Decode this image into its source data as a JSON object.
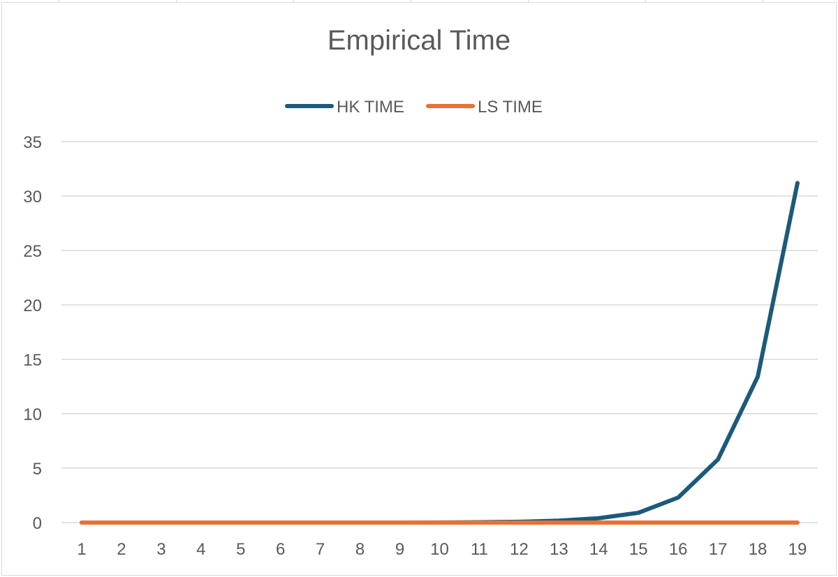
{
  "chart_data": {
    "type": "line",
    "title": "Empirical Time",
    "xlabel": "",
    "ylabel": "",
    "categories": [
      "1",
      "2",
      "3",
      "4",
      "5",
      "6",
      "7",
      "8",
      "9",
      "10",
      "11",
      "12",
      "13",
      "14",
      "15",
      "16",
      "17",
      "18",
      "19"
    ],
    "ylim": [
      0,
      35
    ],
    "yticks": [
      0,
      5,
      10,
      15,
      20,
      25,
      30,
      35
    ],
    "grid": "horizontal",
    "legend_position": "top",
    "series": [
      {
        "name": "HK TIME",
        "color": "#1b5a7a",
        "values": [
          0,
          0,
          0,
          0,
          0,
          0,
          0,
          0,
          0,
          0.01,
          0.03,
          0.07,
          0.18,
          0.4,
          0.9,
          2.3,
          5.8,
          13.4,
          31.2
        ]
      },
      {
        "name": "LS TIME",
        "color": "#e97132",
        "values": [
          0,
          0,
          0,
          0,
          0,
          0,
          0,
          0,
          0,
          0,
          0,
          0,
          0,
          0,
          0,
          0,
          0,
          0,
          0
        ]
      }
    ]
  }
}
